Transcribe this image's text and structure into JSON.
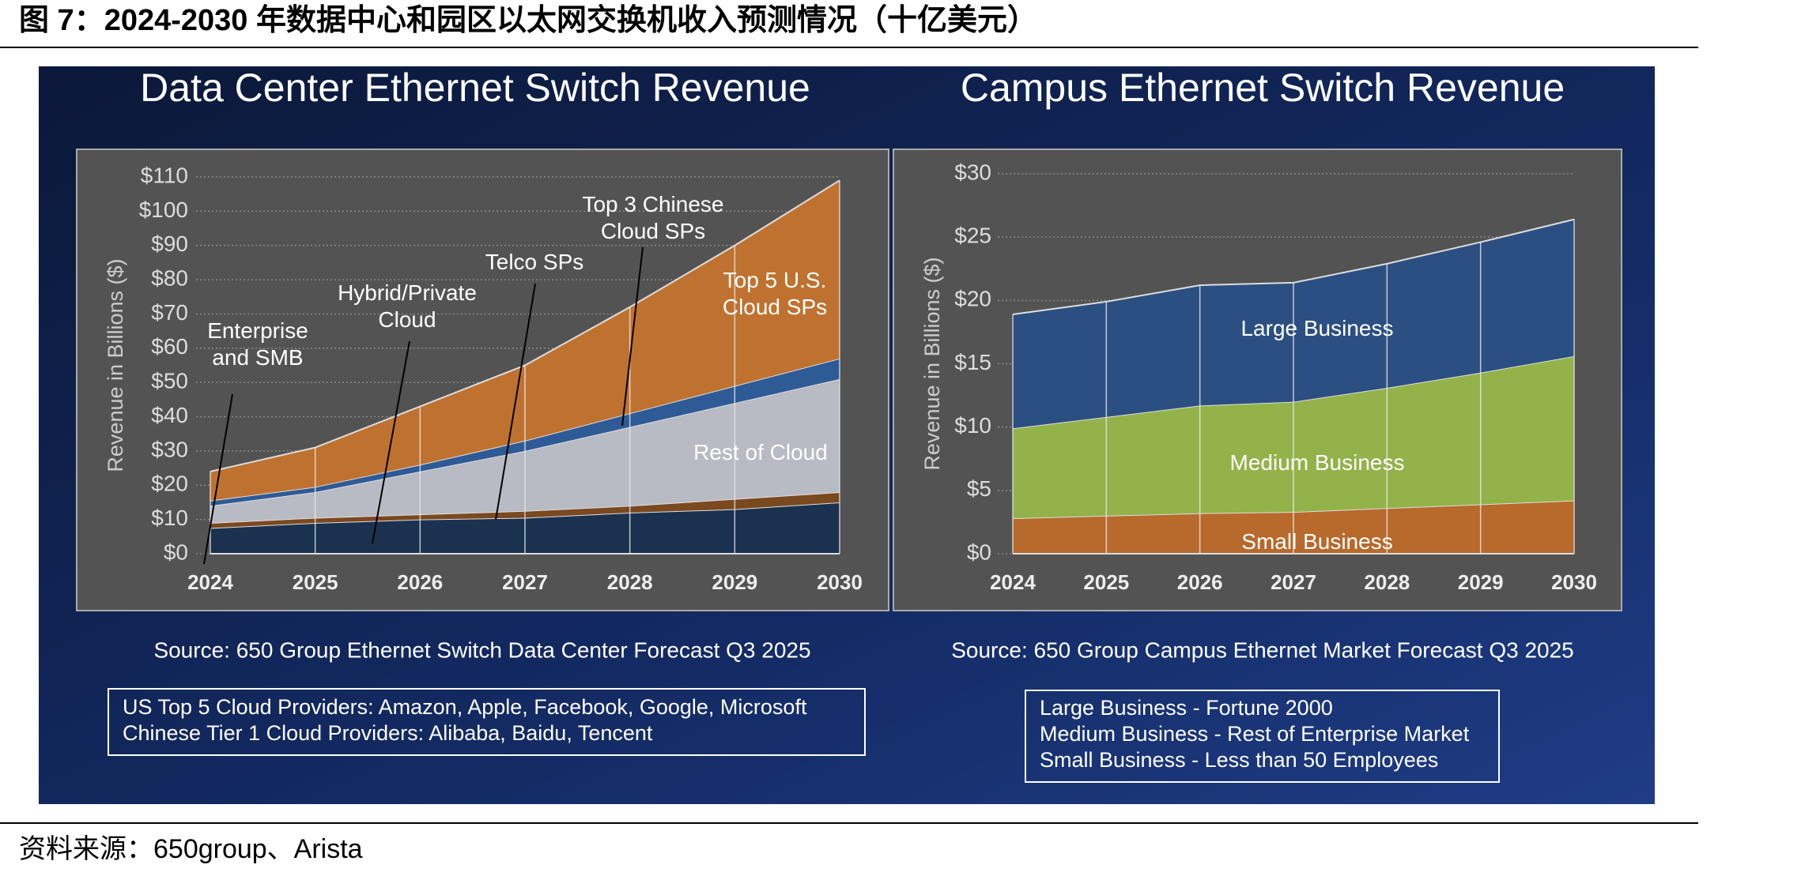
{
  "header": {
    "title": "图 7：2024-2030 年数据中心和园区以太网交换机收入预测情况（十亿美元）"
  },
  "footer": {
    "source": "资料来源：650group、Arista"
  },
  "chart_data": [
    {
      "type": "area",
      "stacked": true,
      "title": "Data Center Ethernet Switch Revenue",
      "y_label": "Revenue in Billions ($)",
      "source": "Source: 650 Group Ethernet Switch Data Center Forecast Q3 2025",
      "notes": [
        "US Top 5 Cloud Providers: Amazon, Apple, Facebook, Google, Microsoft",
        "Chinese Tier 1 Cloud Providers: Alibaba, Baidu, Tencent"
      ],
      "annotations": [
        "Hybrid/Private Cloud"
      ],
      "categories": [
        "2024",
        "2025",
        "2026",
        "2027",
        "2028",
        "2029",
        "2030"
      ],
      "series": [
        {
          "name": "Enterprise and SMB",
          "color": "#1b3150",
          "values": [
            7.5,
            9,
            10,
            10.5,
            12,
            13,
            15
          ]
        },
        {
          "name": "Telco SPs",
          "color": "#7a4920",
          "values": [
            1.5,
            1.5,
            1.5,
            2,
            2,
            3,
            3
          ]
        },
        {
          "name": "Rest of Cloud",
          "color": "#b8bbc3",
          "values": [
            5,
            7.5,
            12.5,
            17.5,
            23,
            28,
            33
          ]
        },
        {
          "name": "Top 3 Chinese Cloud SPs",
          "color": "#2e5a96",
          "values": [
            1.5,
            1.5,
            2,
            3,
            4,
            5,
            6
          ]
        },
        {
          "name": "Top 5 U.S. Cloud SPs",
          "color": "#bf7230",
          "values": [
            8.5,
            11.5,
            17,
            22,
            31,
            41,
            52
          ]
        }
      ],
      "ylim": [
        0,
        110
      ],
      "yticks": [
        {
          "value": 0,
          "label": "$0"
        },
        {
          "value": 10,
          "label": "$10"
        },
        {
          "value": 20,
          "label": "$20"
        },
        {
          "value": 30,
          "label": "$30"
        },
        {
          "value": 40,
          "label": "$40"
        },
        {
          "value": 50,
          "label": "$50"
        },
        {
          "value": 60,
          "label": "$60"
        },
        {
          "value": 70,
          "label": "$70"
        },
        {
          "value": 80,
          "label": "$80"
        },
        {
          "value": 90,
          "label": "$90"
        },
        {
          "value": 100,
          "label": "$100"
        },
        {
          "value": 110,
          "label": "$110"
        }
      ],
      "grid": true
    },
    {
      "type": "area",
      "stacked": true,
      "title": "Campus Ethernet Switch Revenue",
      "y_label": "Revenue in Billions ($)",
      "source": "Source: 650 Group Campus Ethernet Market Forecast Q3 2025",
      "notes": [
        "Large Business - Fortune 2000",
        "Medium Business - Rest of Enterprise Market",
        "Small Business - Less than 50 Employees"
      ],
      "annotations": [],
      "categories": [
        "2024",
        "2025",
        "2026",
        "2027",
        "2028",
        "2029",
        "2030"
      ],
      "series": [
        {
          "name": "Small Business",
          "color": "#b8692c",
          "values": [
            2.8,
            3,
            3.2,
            3.3,
            3.6,
            3.9,
            4.2
          ]
        },
        {
          "name": "Medium Business",
          "color": "#93b24a",
          "values": [
            7.1,
            7.8,
            8.5,
            8.7,
            9.5,
            10.4,
            11.4
          ]
        },
        {
          "name": "Large Business",
          "color": "#2c4f82",
          "values": [
            9,
            9.1,
            9.5,
            9.4,
            9.8,
            10.3,
            10.8
          ]
        }
      ],
      "ylim": [
        0,
        30
      ],
      "yticks": [
        {
          "value": 0,
          "label": "$0"
        },
        {
          "value": 5,
          "label": "$5"
        },
        {
          "value": 10,
          "label": "$10"
        },
        {
          "value": 15,
          "label": "$15"
        },
        {
          "value": 20,
          "label": "$20"
        },
        {
          "value": 25,
          "label": "$25"
        },
        {
          "value": 30,
          "label": "$30"
        }
      ],
      "grid": true
    }
  ]
}
